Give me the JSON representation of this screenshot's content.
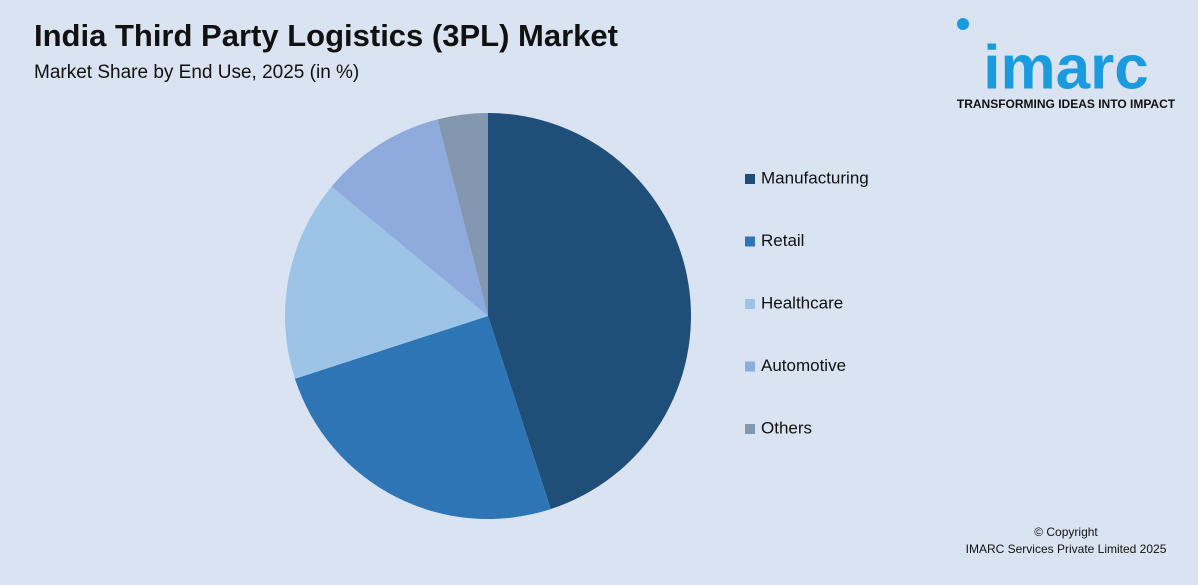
{
  "chart_data": {
    "type": "pie",
    "title": "India Third Party Logistics (3PL) Market",
    "subtitle": "Market Share by End Use, 2025 (in %)",
    "categories": [
      "Manufacturing",
      "Retail",
      "Healthcare",
      "Automotive",
      "Others"
    ],
    "values": [
      45,
      25,
      16,
      10,
      4
    ],
    "colors": [
      "#1f4e79",
      "#2e75b6",
      "#9dc3e6",
      "#8faadc",
      "#8497b0"
    ],
    "legend": "right"
  },
  "logo": {
    "name": "imarc",
    "tagline": "TRANSFORMING IDEAS INTO IMPACT"
  },
  "footer": {
    "copyright": "© Copyright",
    "company": "IMARC Services Private Limited 2025"
  }
}
